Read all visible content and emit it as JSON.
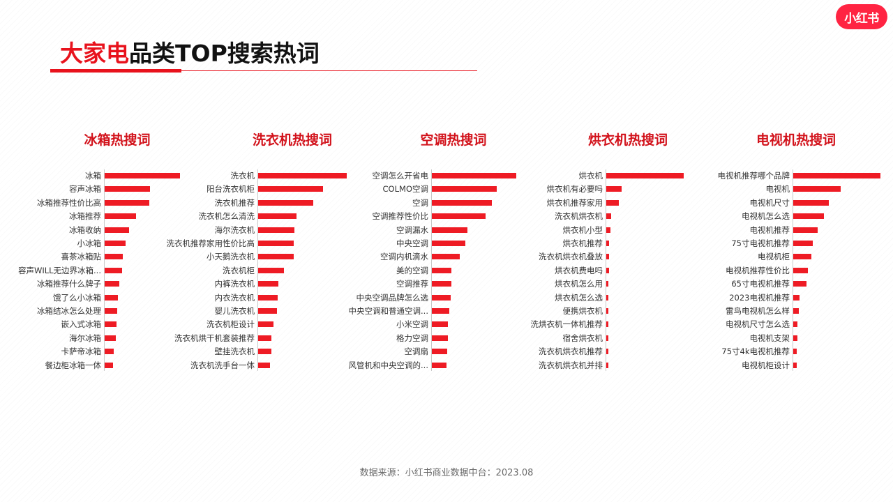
{
  "brand": {
    "logo_text": "小红书",
    "accent": "#ff2442"
  },
  "header": {
    "title_accent": "大家电",
    "title_rest": "品类TOP搜索热词"
  },
  "footer": {
    "source": "数据来源：小红书商业数据中台：2023.08"
  },
  "chart_data": [
    {
      "type": "bar",
      "orientation": "horizontal",
      "title": "冰箱热搜词",
      "categories": [
        "冰箱",
        "容声冰箱",
        "冰箱推荐性价比高",
        "冰箱推荐",
        "冰箱收纳",
        "小冰箱",
        "喜茶冰箱贴",
        "容声WILL无边界冰箱...",
        "冰箱推荐什么牌子",
        "饿了么小冰箱",
        "冰箱结冰怎么处理",
        "嵌入式冰箱",
        "海尔冰箱",
        "卡萨帝冰箱",
        "餐边柜冰箱一体"
      ],
      "values": [
        100,
        60,
        59,
        42,
        32,
        28,
        24,
        23,
        19,
        18,
        17,
        16,
        15,
        12,
        11
      ],
      "bar_color": "#ee1b24"
    },
    {
      "type": "bar",
      "orientation": "horizontal",
      "title": "洗衣机热搜词",
      "categories": [
        "洗衣机",
        "阳台洗衣机柜",
        "洗衣机推荐",
        "洗衣机怎么清洗",
        "海尔洗衣机",
        "洗衣机推荐家用性价比高",
        "小天鹅洗衣机",
        "洗衣机柜",
        "内裤洗衣机",
        "内衣洗衣机",
        "婴儿洗衣机",
        "洗衣机柜设计",
        "洗衣机烘干机套装推荐",
        "壁挂洗衣机",
        "洗衣机洗手台一体"
      ],
      "values": [
        100,
        73,
        62,
        43,
        41,
        40,
        40,
        29,
        23,
        22,
        21,
        17,
        15,
        15,
        13
      ],
      "bar_color": "#ee1b24"
    },
    {
      "type": "bar",
      "orientation": "horizontal",
      "title": "空调热搜词",
      "categories": [
        "空调怎么开省电",
        "COLMO空调",
        "空调",
        "空调推荐性价比",
        "空调漏水",
        "中央空调",
        "空调内机滴水",
        "美的空调",
        "空调推荐",
        "中央空调品牌怎么选",
        "中央空调和普通空调...",
        "小米空调",
        "格力空调",
        "空调扇",
        "风管机和中央空调的..."
      ],
      "values": [
        100,
        77,
        71,
        64,
        42,
        40,
        33,
        23,
        23,
        22,
        21,
        19,
        19,
        18,
        17
      ],
      "bar_color": "#ee1b24"
    },
    {
      "type": "bar",
      "orientation": "horizontal",
      "title": "烘衣机热搜词",
      "categories": [
        "烘衣机",
        "烘衣机有必要吗",
        "烘衣机推荐家用",
        "洗衣机烘衣机",
        "烘衣机小型",
        "烘衣机推荐",
        "洗衣机烘衣机叠放",
        "烘衣机费电吗",
        "烘衣机怎么用",
        "烘衣机怎么选",
        "便携烘衣机",
        "洗烘衣机一体机推荐",
        "宿舍烘衣机",
        "洗衣机烘衣机推荐",
        "洗衣机烘衣机并排"
      ],
      "values": [
        100,
        20,
        16,
        6,
        5,
        4,
        4,
        4,
        3,
        3,
        3,
        3,
        2,
        2,
        2
      ],
      "bar_color": "#ee1b24"
    },
    {
      "type": "bar",
      "orientation": "horizontal",
      "title": "电视机热搜词",
      "categories": [
        "电视机推荐哪个品牌",
        "电视机",
        "电视机尺寸",
        "电视机怎么选",
        "电视机推荐",
        "75寸电视机推荐",
        "电视机柜",
        "电视机推荐性价比",
        "65寸电视机推荐",
        "2023电视机推荐",
        "雷鸟电视机怎么样",
        "电视机尺寸怎么选",
        "电视机支架",
        "75寸4k电视机推荐",
        "电视机柜设计"
      ],
      "values": [
        100,
        54,
        41,
        35,
        28,
        22,
        21,
        17,
        15,
        7,
        6,
        5,
        5,
        4,
        4
      ],
      "bar_color": "#ee1b24"
    }
  ]
}
